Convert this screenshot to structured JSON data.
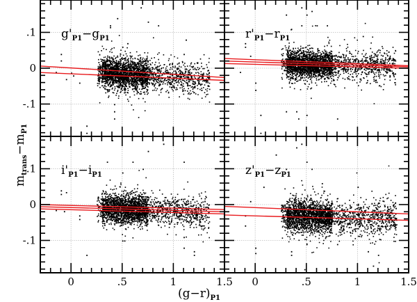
{
  "chart_data": {
    "type": "scatter",
    "layout": "2x2 panels, shared axes",
    "xlabel": "(g−r)",
    "xlabel_sub": "P1",
    "ylabel": "m",
    "ylabel_sub1": "trans",
    "ylabel_mid": "−m",
    "ylabel_sub2": "P1",
    "xlim": [
      -0.3,
      1.5
    ],
    "ylim": [
      -0.19,
      0.19
    ],
    "x_ticks_major": [
      0,
      0.5,
      1,
      1.5
    ],
    "x_tick_labels": [
      "0",
      ".5",
      "1",
      "1.5"
    ],
    "y_ticks_major": [
      -0.1,
      0,
      0.1
    ],
    "y_tick_labels": [
      "-.1",
      "0",
      ".1"
    ],
    "grid": "dotted at major ticks",
    "line_color": "#e8191c",
    "point_color": "#000000",
    "panels": [
      {
        "id": "g",
        "label_main1": "g'",
        "label_sub1": "P1",
        "label_main2": "−g",
        "label_sub2": "P1",
        "position": "top-left",
        "cluster": {
          "x_min": 0.25,
          "x_max": 1.35,
          "y_center_at_x0": -0.005,
          "slope": -0.018,
          "y_sigma": 0.022,
          "n": 2600
        },
        "fit_lines": [
          {
            "x": [
              -0.3,
              1.5
            ],
            "y": [
              0.006,
              -0.026
            ]
          },
          {
            "x": [
              -0.3,
              1.5
            ],
            "y": [
              -0.012,
              -0.034
            ]
          }
        ],
        "outliers": [
          [
            -0.1,
            0.04
          ],
          [
            -0.1,
            0.022
          ],
          [
            -0.15,
            -0.01
          ],
          [
            -0.05,
            -0.03
          ],
          [
            0.0,
            -0.012
          ],
          [
            0.02,
            -0.02
          ],
          [
            0.08,
            -0.04
          ],
          [
            0.15,
            -0.16
          ],
          [
            0.15,
            -0.18
          ],
          [
            0.38,
            0.12
          ],
          [
            0.38,
            0.115
          ],
          [
            0.45,
            0.14
          ],
          [
            0.5,
            0.06
          ],
          [
            0.55,
            0.07
          ],
          [
            0.68,
            0.17
          ],
          [
            0.75,
            0.13
          ],
          [
            0.85,
            0.12
          ],
          [
            1.12,
            0.08
          ],
          [
            1.1,
            0.04
          ],
          [
            0.42,
            -0.14
          ],
          [
            0.42,
            -0.12
          ],
          [
            0.42,
            -0.1
          ]
        ]
      },
      {
        "id": "r",
        "label_main1": "r'",
        "label_sub1": "P1",
        "label_main2": "−r",
        "label_sub2": "P1",
        "position": "top-right",
        "cluster": {
          "x_min": 0.25,
          "x_max": 1.37,
          "y_center_at_x0": 0.014,
          "slope": -0.006,
          "y_sigma": 0.02,
          "n": 2600
        },
        "fit_lines": [
          {
            "x": [
              -0.3,
              1.5
            ],
            "y": [
              0.027,
              0.007
            ]
          },
          {
            "x": [
              -0.3,
              1.5
            ],
            "y": [
              0.02,
              0.004
            ]
          },
          {
            "x": [
              -0.3,
              1.5
            ],
            "y": [
              0.013,
              0.0
            ]
          }
        ],
        "outliers": [
          [
            -0.1,
            0.07
          ],
          [
            -0.1,
            0.06
          ],
          [
            -0.05,
            0.035
          ],
          [
            -0.15,
            -0.01
          ],
          [
            0.0,
            -0.04
          ],
          [
            0.0,
            -0.06
          ],
          [
            0.05,
            -0.13
          ],
          [
            0.05,
            -0.18
          ],
          [
            0.3,
            0.15
          ],
          [
            0.35,
            0.11
          ],
          [
            0.45,
            0.12
          ],
          [
            0.45,
            0.17
          ],
          [
            0.5,
            0.15
          ],
          [
            0.55,
            0.16
          ],
          [
            0.6,
            0.12
          ],
          [
            0.7,
            0.12
          ],
          [
            1.05,
            0.09
          ],
          [
            0.42,
            -0.14
          ],
          [
            0.5,
            -0.13
          ],
          [
            0.4,
            -0.12
          ],
          [
            0.8,
            -0.14
          ],
          [
            0.3,
            -0.12
          ]
        ]
      },
      {
        "id": "i",
        "label_main1": "i'",
        "label_sub1": "P1",
        "label_main2": "−i",
        "label_sub2": "P1",
        "position": "bottom-left",
        "cluster": {
          "x_min": 0.25,
          "x_max": 1.35,
          "y_center_at_x0": -0.005,
          "slope": -0.012,
          "y_sigma": 0.02,
          "n": 2600
        },
        "fit_lines": [
          {
            "x": [
              -0.3,
              1.5
            ],
            "y": [
              0.0,
              -0.014
            ]
          },
          {
            "x": [
              -0.3,
              1.5
            ],
            "y": [
              -0.006,
              -0.02
            ]
          },
          {
            "x": [
              -0.3,
              1.5
            ],
            "y": [
              -0.012,
              -0.026
            ]
          }
        ],
        "outliers": [
          [
            -0.1,
            0.03
          ],
          [
            -0.1,
            0.04
          ],
          [
            -0.05,
            0.035
          ],
          [
            -0.15,
            -0.015
          ],
          [
            -0.07,
            -0.018
          ],
          [
            0.08,
            -0.03
          ],
          [
            0.08,
            -0.04
          ],
          [
            0.15,
            -0.14
          ],
          [
            0.35,
            0.12
          ],
          [
            0.4,
            0.18
          ],
          [
            0.5,
            0.09
          ],
          [
            0.6,
            0.12
          ],
          [
            0.7,
            0.1
          ],
          [
            0.75,
            0.15
          ],
          [
            0.9,
            0.17
          ],
          [
            1.1,
            0.12
          ],
          [
            0.5,
            -0.1
          ],
          [
            0.52,
            -0.1
          ],
          [
            1.1,
            -0.12
          ],
          [
            1.2,
            -0.13
          ],
          [
            1.2,
            -0.14
          ],
          [
            1.1,
            -0.09
          ]
        ]
      },
      {
        "id": "z",
        "label_main1": "z'",
        "label_sub1": "P1",
        "label_main2": "−z",
        "label_sub2": "P1",
        "position": "bottom-right",
        "cluster": {
          "x_min": 0.25,
          "x_max": 1.38,
          "y_center_at_x0": -0.024,
          "slope": -0.012,
          "y_sigma": 0.022,
          "n": 2600
        },
        "fit_lines": [
          {
            "x": [
              -0.3,
              1.5
            ],
            "y": [
              -0.005,
              -0.026
            ]
          },
          {
            "x": [
              -0.3,
              1.5
            ],
            "y": [
              -0.029,
              -0.044
            ]
          }
        ],
        "outliers": [
          [
            -0.05,
            0.01
          ],
          [
            -0.1,
            -0.03
          ],
          [
            -0.1,
            -0.058
          ],
          [
            0.0,
            -0.12
          ],
          [
            0.0,
            -0.135
          ],
          [
            0.08,
            0.05
          ],
          [
            0.2,
            0.14
          ],
          [
            0.3,
            0.1
          ],
          [
            0.4,
            0.16
          ],
          [
            0.45,
            0.17
          ],
          [
            0.5,
            0.12
          ],
          [
            0.55,
            0.1
          ],
          [
            0.65,
            0.06
          ],
          [
            1.0,
            0.05
          ],
          [
            0.35,
            -0.13
          ],
          [
            0.35,
            -0.14
          ],
          [
            0.5,
            -0.11
          ],
          [
            0.8,
            -0.11
          ],
          [
            1.1,
            -0.13
          ],
          [
            1.15,
            -0.17
          ],
          [
            1.2,
            -0.14
          ],
          [
            0.48,
            -0.18
          ]
        ]
      }
    ]
  }
}
